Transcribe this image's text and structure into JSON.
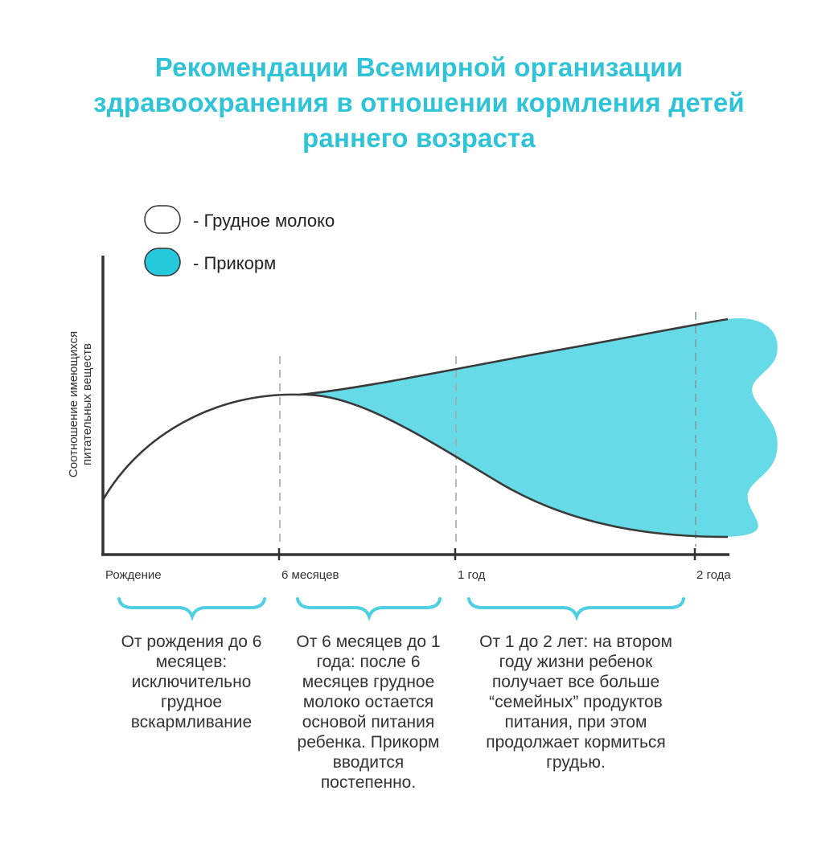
{
  "title": {
    "line1": "Рекомендации Всемирной организации",
    "line2": "здравоохранения в отношении кормления детей",
    "line3": "раннего возраста"
  },
  "legend": [
    {
      "label": "- Грудное молоко",
      "fill": "#ffffff"
    },
    {
      "label": "- Прикорм",
      "fill": "#26c8dc"
    }
  ],
  "y_axis": {
    "line1": "Соотношение имеющихся",
    "line2": "питательных веществ"
  },
  "ticks": [
    "Рождение",
    "6 месяцев",
    "1 год",
    "2 года"
  ],
  "periods": [
    {
      "lines": [
        "От рождения до 6",
        "месяцев:",
        "исключительно",
        "грудное",
        "вскармливание"
      ]
    },
    {
      "lines": [
        "От 6 месяцев до 1",
        "года: после 6",
        "месяцев грудное",
        "молоко остается",
        "основой питания",
        "ребенка. Прикорм",
        "вводится",
        "постепенно."
      ]
    },
    {
      "lines": [
        "От 1 до 2 лет: на втором",
        "году жизни ребенок",
        "получает все больше",
        "“семейных” продуктов",
        "питания, при этом",
        "продолжает кормиться",
        "грудью."
      ]
    }
  ],
  "colors": {
    "title": "#2ec3d6",
    "fill": "#66dae6",
    "brace": "#4fd0e2",
    "axis": "#333333"
  }
}
